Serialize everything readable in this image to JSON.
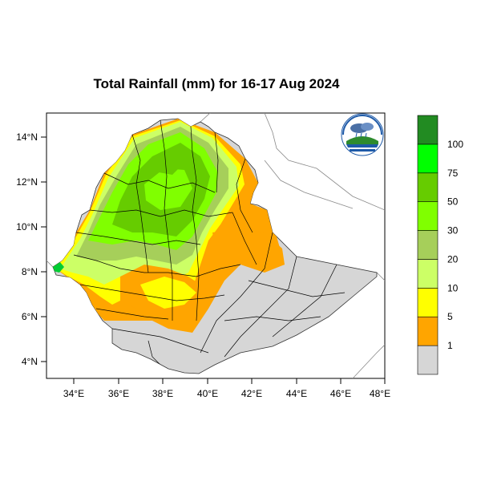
{
  "title": "Total Rainfall (mm) for 16-17 Aug 2024",
  "map": {
    "region": "Ethiopia",
    "lon_range": [
      33,
      48.2
    ],
    "lat_range": [
      3.2,
      15.1
    ],
    "x_ticks": [
      "34°E",
      "36°E",
      "38°E",
      "40°E",
      "42°E",
      "44°E",
      "46°E",
      "48°E"
    ],
    "y_ticks": [
      "14°N",
      "12°N",
      "10°N",
      "8°N",
      "6°N",
      "4°N"
    ]
  },
  "legend": {
    "labels": [
      "1",
      "5",
      "10",
      "20",
      "30",
      "50",
      "75",
      "100"
    ],
    "colors": [
      "#d6d6d6",
      "#ffa500",
      "#ffff00",
      "#ccff66",
      "#a6cf5a",
      "#80ff00",
      "#66cc00",
      "#00ff00",
      "#228b22"
    ]
  },
  "logo": {
    "name": "ethiopian-meteorology-institute-logo",
    "text": "Ethiopian Meteorology Institute"
  }
}
